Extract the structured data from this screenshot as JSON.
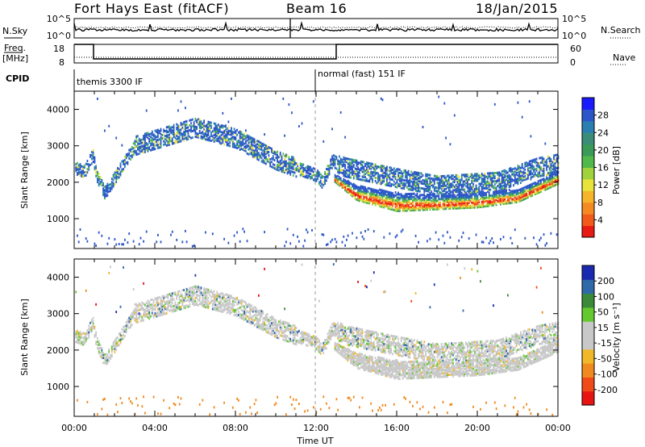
{
  "header": {
    "station": "Fort Hays East (fitACF)",
    "beam": "Beam 16",
    "date": "18/Jan/2015"
  },
  "top_panels": {
    "nsky_label": "N.Sky",
    "nsky_ticks": [
      "10^5",
      "10^0"
    ],
    "nsearch_label": "N.Search",
    "nsearch_ticks": [
      "10^5",
      "10^0"
    ],
    "freq_label": "Freq.",
    "freq_unit": "[MHz]",
    "freq_ticks": [
      "18",
      "8"
    ],
    "nave_label": "Nave",
    "nave_ticks": [
      "60",
      "0"
    ],
    "cpid_label": "CPID",
    "cpid_modes": [
      {
        "label": "themis 3300 IF",
        "start_hour": 0
      },
      {
        "label": "normal (fast) 151 IF",
        "start_hour": 12
      }
    ]
  },
  "chart_data": [
    {
      "type": "heatmap",
      "name": "power",
      "ylabel": "Slant Range [km]",
      "ylim": [
        180,
        4500
      ],
      "yticks": [
        1000,
        2000,
        3000,
        4000
      ],
      "xlim_hours": [
        0,
        24
      ],
      "colorbar": {
        "label": "Power [dB]",
        "ticks": [
          "28",
          "24",
          "20",
          "16",
          "12",
          "8",
          "4"
        ],
        "colors": [
          "#1a1aff",
          "#2b55c8",
          "#2a7fb0",
          "#3c8c7a",
          "#3a9a58",
          "#52b84a",
          "#9fd23c",
          "#e8e33a",
          "#f5b42a",
          "#f58a22",
          "#f25a1c",
          "#e81a14"
        ]
      }
    },
    {
      "type": "heatmap",
      "name": "velocity",
      "ylabel": "Slant Range [km]",
      "ylim": [
        180,
        4500
      ],
      "yticks": [
        1000,
        2000,
        3000,
        4000
      ],
      "xlim_hours": [
        0,
        24
      ],
      "colorbar": {
        "label": "Velocity [m s⁻¹]",
        "ticks": [
          "200",
          "100",
          "50",
          "15",
          "-15",
          "-50",
          "-100",
          "-200"
        ],
        "colors": [
          "#1a2ab0",
          "#2f6aa8",
          "#3a8a3a",
          "#64c830",
          "#c8c8c8",
          "#c8c8c8",
          "#f0b828",
          "#f08a1e",
          "#f04a18",
          "#e81414"
        ]
      }
    }
  ],
  "x_axis": {
    "ticks": [
      "00:00",
      "04:00",
      "08:00",
      "12:00",
      "16:00",
      "20:00",
      "00:00"
    ],
    "label": "Time UT"
  }
}
